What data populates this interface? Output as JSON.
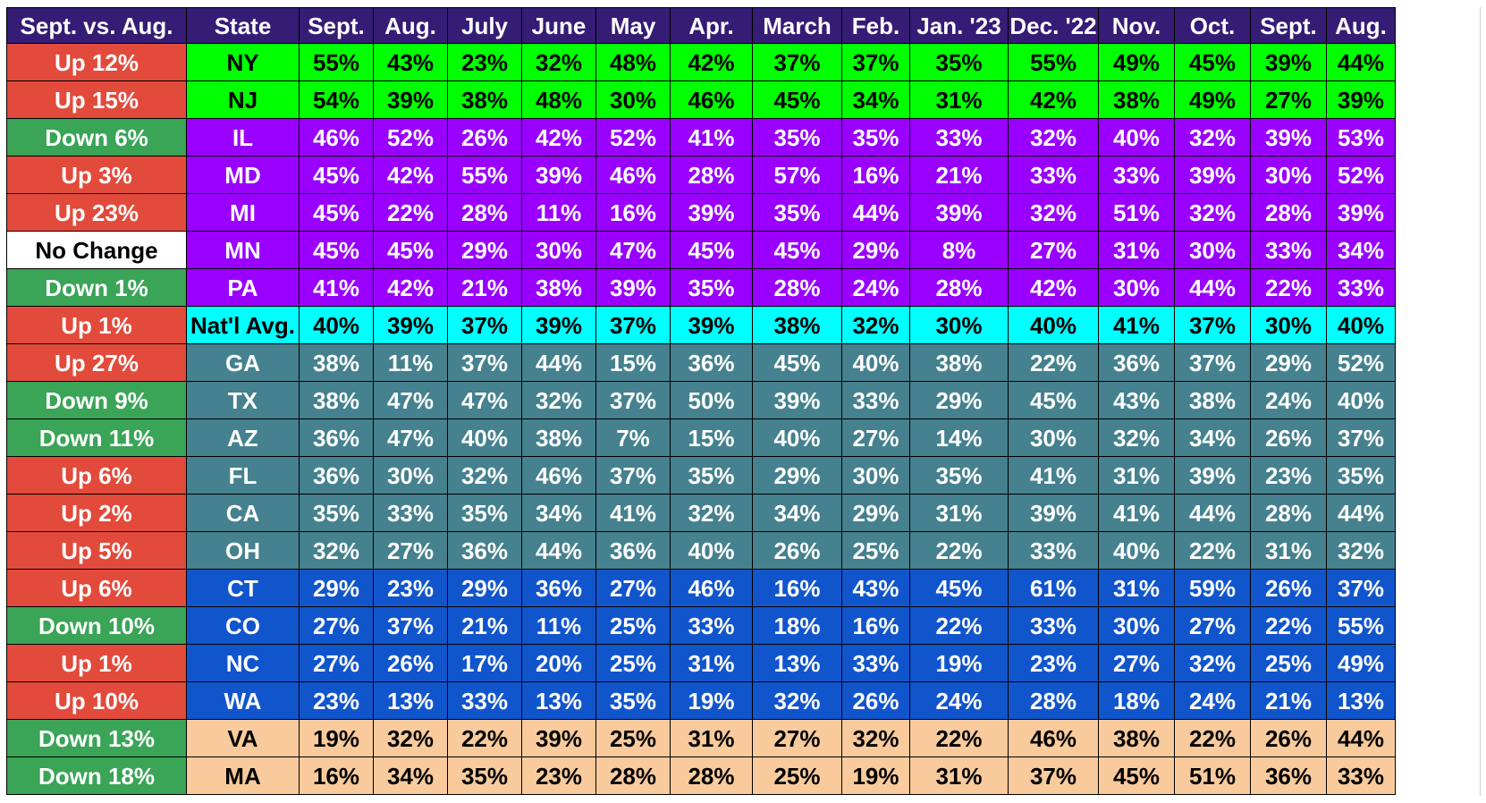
{
  "colors": {
    "header_bg": "#351c75",
    "header_text": "#ffffff",
    "up": "#e24a3b",
    "down": "#3aa457",
    "no_change": "#ffffff",
    "group_top": "#00ff00",
    "group_mid": "#9900ff",
    "nat_avg": "#00ffff",
    "group_teal": "#45818e",
    "group_blue": "#1155cc",
    "group_peach": "#f9cb9c"
  },
  "chart_data": {
    "type": "table",
    "columns": [
      "Sept. vs. Aug.",
      "State",
      "Sept.",
      "Aug.",
      "July",
      "June",
      "May",
      "Apr.",
      "March",
      "Feb.",
      "Jan. '23",
      "Dec. '22",
      "Nov.",
      "Oct.",
      "Sept.",
      "Aug."
    ],
    "rows": [
      {
        "change": "Up 12%",
        "change_type": "up",
        "group": "group_top",
        "state": "NY",
        "values": [
          "55%",
          "43%",
          "23%",
          "32%",
          "48%",
          "42%",
          "37%",
          "37%",
          "35%",
          "55%",
          "49%",
          "45%",
          "39%",
          "44%"
        ]
      },
      {
        "change": "Up 15%",
        "change_type": "up",
        "group": "group_top",
        "state": "NJ",
        "values": [
          "54%",
          "39%",
          "38%",
          "48%",
          "30%",
          "46%",
          "45%",
          "34%",
          "31%",
          "42%",
          "38%",
          "49%",
          "27%",
          "39%"
        ]
      },
      {
        "change": "Down 6%",
        "change_type": "down",
        "group": "group_mid",
        "state": "IL",
        "values": [
          "46%",
          "52%",
          "26%",
          "42%",
          "52%",
          "41%",
          "35%",
          "35%",
          "33%",
          "32%",
          "40%",
          "32%",
          "39%",
          "53%"
        ]
      },
      {
        "change": "Up 3%",
        "change_type": "up",
        "group": "group_mid",
        "state": "MD",
        "values": [
          "45%",
          "42%",
          "55%",
          "39%",
          "46%",
          "28%",
          "57%",
          "16%",
          "21%",
          "33%",
          "33%",
          "39%",
          "30%",
          "52%"
        ]
      },
      {
        "change": "Up 23%",
        "change_type": "up",
        "group": "group_mid",
        "state": "MI",
        "values": [
          "45%",
          "22%",
          "28%",
          "11%",
          "16%",
          "39%",
          "35%",
          "44%",
          "39%",
          "32%",
          "51%",
          "32%",
          "28%",
          "39%"
        ]
      },
      {
        "change": "No Change",
        "change_type": "no_change",
        "group": "group_mid",
        "state": "MN",
        "values": [
          "45%",
          "45%",
          "29%",
          "30%",
          "47%",
          "45%",
          "45%",
          "29%",
          "8%",
          "27%",
          "31%",
          "30%",
          "33%",
          "34%"
        ]
      },
      {
        "change": "Down 1%",
        "change_type": "down",
        "group": "group_mid",
        "state": "PA",
        "values": [
          "41%",
          "42%",
          "21%",
          "38%",
          "39%",
          "35%",
          "28%",
          "24%",
          "28%",
          "42%",
          "30%",
          "44%",
          "22%",
          "33%"
        ]
      },
      {
        "change": "Up 1%",
        "change_type": "up",
        "group": "nat_avg",
        "state": "Nat'l Avg.",
        "values": [
          "40%",
          "39%",
          "37%",
          "39%",
          "37%",
          "39%",
          "38%",
          "32%",
          "30%",
          "40%",
          "41%",
          "37%",
          "30%",
          "40%"
        ]
      },
      {
        "change": "Up 27%",
        "change_type": "up",
        "group": "group_teal",
        "state": "GA",
        "values": [
          "38%",
          "11%",
          "37%",
          "44%",
          "15%",
          "36%",
          "45%",
          "40%",
          "38%",
          "22%",
          "36%",
          "37%",
          "29%",
          "52%"
        ]
      },
      {
        "change": "Down 9%",
        "change_type": "down",
        "group": "group_teal",
        "state": "TX",
        "values": [
          "38%",
          "47%",
          "47%",
          "32%",
          "37%",
          "50%",
          "39%",
          "33%",
          "29%",
          "45%",
          "43%",
          "38%",
          "24%",
          "40%"
        ]
      },
      {
        "change": "Down 11%",
        "change_type": "down",
        "group": "group_teal",
        "state": "AZ",
        "values": [
          "36%",
          "47%",
          "40%",
          "38%",
          "7%",
          "15%",
          "40%",
          "27%",
          "14%",
          "30%",
          "32%",
          "34%",
          "26%",
          "37%"
        ]
      },
      {
        "change": "Up 6%",
        "change_type": "up",
        "group": "group_teal",
        "state": "FL",
        "values": [
          "36%",
          "30%",
          "32%",
          "46%",
          "37%",
          "35%",
          "29%",
          "30%",
          "35%",
          "41%",
          "31%",
          "39%",
          "23%",
          "35%"
        ]
      },
      {
        "change": "Up 2%",
        "change_type": "up",
        "group": "group_teal",
        "state": "CA",
        "values": [
          "35%",
          "33%",
          "35%",
          "34%",
          "41%",
          "32%",
          "34%",
          "29%",
          "31%",
          "39%",
          "41%",
          "44%",
          "28%",
          "44%"
        ]
      },
      {
        "change": "Up 5%",
        "change_type": "up",
        "group": "group_teal",
        "state": "OH",
        "values": [
          "32%",
          "27%",
          "36%",
          "44%",
          "36%",
          "40%",
          "26%",
          "25%",
          "22%",
          "33%",
          "40%",
          "22%",
          "31%",
          "32%"
        ]
      },
      {
        "change": "Up 6%",
        "change_type": "up",
        "group": "group_blue",
        "state": "CT",
        "values": [
          "29%",
          "23%",
          "29%",
          "36%",
          "27%",
          "46%",
          "16%",
          "43%",
          "45%",
          "61%",
          "31%",
          "59%",
          "26%",
          "37%"
        ]
      },
      {
        "change": "Down 10%",
        "change_type": "down",
        "group": "group_blue",
        "state": "CO",
        "values": [
          "27%",
          "37%",
          "21%",
          "11%",
          "25%",
          "33%",
          "18%",
          "16%",
          "22%",
          "33%",
          "30%",
          "27%",
          "22%",
          "55%"
        ]
      },
      {
        "change": "Up 1%",
        "change_type": "up",
        "group": "group_blue",
        "state": "NC",
        "values": [
          "27%",
          "26%",
          "17%",
          "20%",
          "25%",
          "31%",
          "13%",
          "33%",
          "19%",
          "23%",
          "27%",
          "32%",
          "25%",
          "49%"
        ]
      },
      {
        "change": "Up 10%",
        "change_type": "up",
        "group": "group_blue",
        "state": "WA",
        "values": [
          "23%",
          "13%",
          "33%",
          "13%",
          "35%",
          "19%",
          "32%",
          "26%",
          "24%",
          "28%",
          "18%",
          "24%",
          "21%",
          "13%"
        ]
      },
      {
        "change": "Down 13%",
        "change_type": "down",
        "group": "group_peach",
        "state": "VA",
        "values": [
          "19%",
          "32%",
          "22%",
          "39%",
          "25%",
          "31%",
          "27%",
          "32%",
          "22%",
          "46%",
          "38%",
          "22%",
          "26%",
          "44%"
        ]
      },
      {
        "change": "Down 18%",
        "change_type": "down",
        "group": "group_peach",
        "state": "MA",
        "values": [
          "16%",
          "34%",
          "35%",
          "23%",
          "28%",
          "28%",
          "25%",
          "19%",
          "31%",
          "37%",
          "45%",
          "51%",
          "36%",
          "33%"
        ]
      }
    ]
  }
}
